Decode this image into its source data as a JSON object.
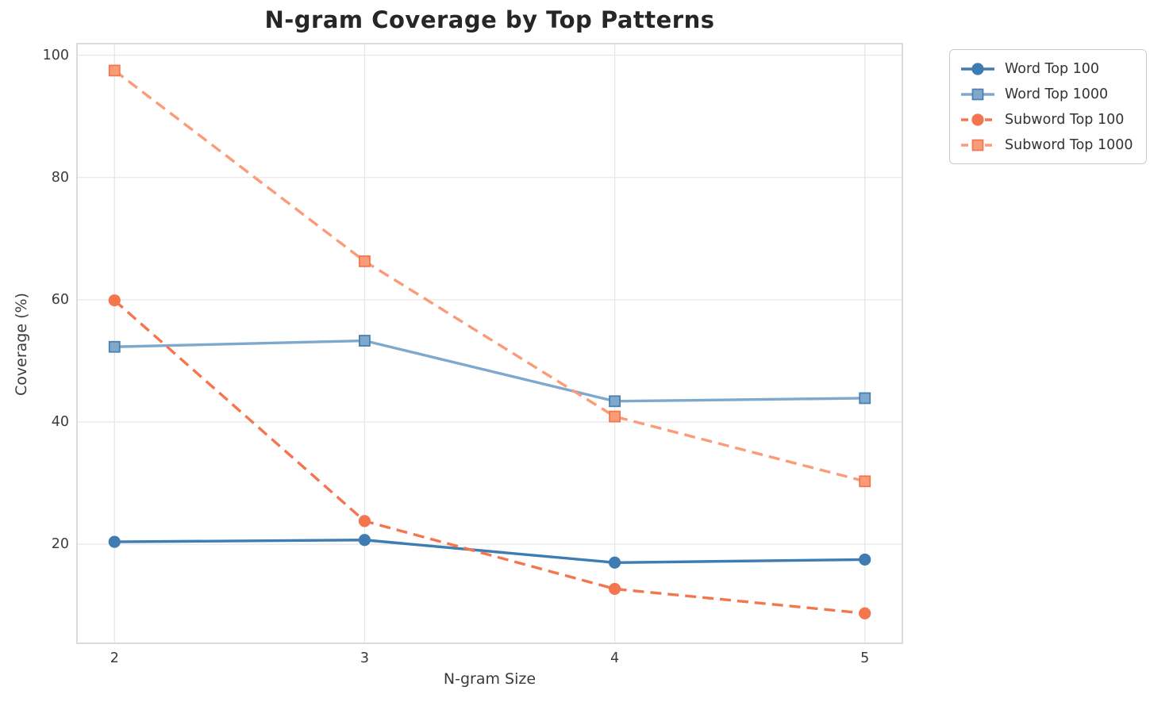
{
  "figure": {
    "background_color": "#ffffff",
    "grid_color": "#e7e7e7",
    "spine_color": "#cfcfcf",
    "title_color": "#262626",
    "label_color": "#3b3b3b"
  },
  "chart_data": {
    "type": "line",
    "title": "N-gram Coverage by Top Patterns",
    "xlabel": "N-gram Size",
    "ylabel": "Coverage (%)",
    "x": [
      2,
      3,
      4,
      5
    ],
    "xticks": [
      "2",
      "3",
      "4",
      "5"
    ],
    "yticks": [
      "20",
      "40",
      "60",
      "80",
      "100"
    ],
    "ytick_values": [
      20,
      40,
      60,
      80,
      100
    ],
    "xlim": [
      1.85,
      5.15
    ],
    "ylim": [
      3.8,
      101.9
    ],
    "grid": true,
    "legend_position": "outside-top-right",
    "series": [
      {
        "name": "Word Top 100",
        "values": [
          20.4,
          20.7,
          17.0,
          17.5
        ],
        "color": "#3E7CB1",
        "marker_fill": "#3E7CB1",
        "marker_edge": "#3E7CB1",
        "marker": "circle",
        "line_style": "solid"
      },
      {
        "name": "Word Top 1000",
        "values": [
          52.3,
          53.3,
          43.4,
          43.9
        ],
        "color": "#7FA8CE",
        "marker_fill": "#7FA8CE",
        "marker_edge": "#4A7FB0",
        "marker": "square",
        "line_style": "solid"
      },
      {
        "name": "Subword Top 100",
        "values": [
          59.9,
          23.8,
          12.7,
          8.7
        ],
        "color": "#F4764E",
        "marker_fill": "#F4764E",
        "marker_edge": "#F4764E",
        "marker": "circle",
        "line_style": "dashed"
      },
      {
        "name": "Subword Top 1000",
        "values": [
          97.5,
          66.3,
          40.9,
          30.3
        ],
        "color": "#FA9C78",
        "marker_fill": "#FA9C78",
        "marker_edge": "#F4764E",
        "marker": "square",
        "line_style": "dashed"
      }
    ]
  }
}
